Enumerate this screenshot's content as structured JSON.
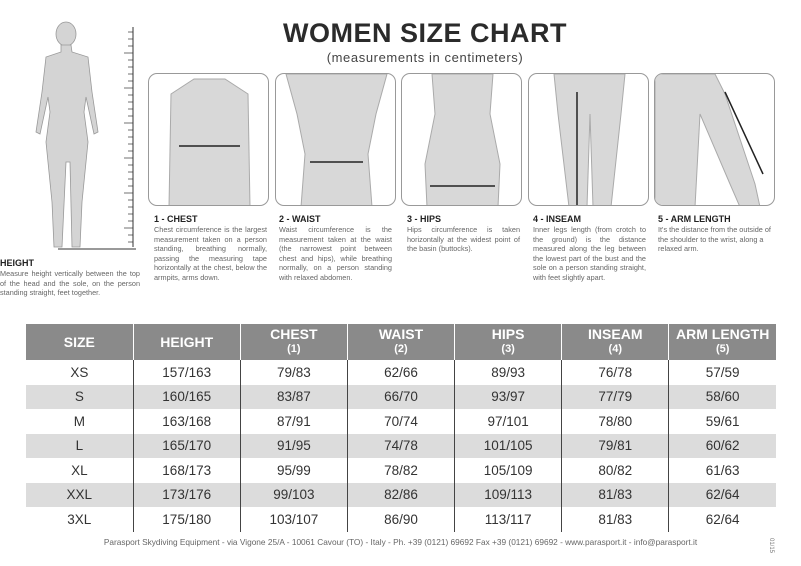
{
  "header": {
    "title": "WOMEN SIZE CHART",
    "subtitle": "(measurements in centimeters)"
  },
  "measures": [
    {
      "title": "HEIGHT",
      "text": "Measure height vertically between the top of the head and the sole, on the person standing straight, feet together."
    },
    {
      "title": "1 - CHEST",
      "text": "Chest circumference is the largest measurement taken on a person standing, breathing normally, passing the measuring tape horizontally at the chest, below the armpits, arms down."
    },
    {
      "title": "2 - WAIST",
      "text": "Waist circumference is the measurement taken at the waist (the narrowest point between chest and hips), while breathing normally, on a person standing with relaxed abdomen."
    },
    {
      "title": "3 - HIPS",
      "text": "Hips circumference is taken horizontally at the widest point of the basin (buttocks)."
    },
    {
      "title": "4 - INSEAM",
      "text": "Inner legs length (from crotch to the ground) is the distance measured along the leg between the lowest part of the bust and the sole on a person standing straight, with feet slightly apart."
    },
    {
      "title": "5 - ARM LENGTH",
      "text": "It's the distance from the outside of the shoulder to the wrist, along a relaxed arm."
    }
  ],
  "table": {
    "columns": [
      {
        "label": "SIZE",
        "note": ""
      },
      {
        "label": "HEIGHT",
        "note": ""
      },
      {
        "label": "CHEST",
        "note": "(1)"
      },
      {
        "label": "WAIST",
        "note": "(2)"
      },
      {
        "label": "HIPS",
        "note": "(3)"
      },
      {
        "label": "INSEAM",
        "note": "(4)"
      },
      {
        "label": "ARM LENGTH",
        "note": "(5)"
      }
    ],
    "rows": [
      [
        "XS",
        "157/163",
        "79/83",
        "62/66",
        "89/93",
        "76/78",
        "57/59"
      ],
      [
        "S",
        "160/165",
        "83/87",
        "66/70",
        "93/97",
        "77/79",
        "58/60"
      ],
      [
        "M",
        "163/168",
        "87/91",
        "70/74",
        "97/101",
        "78/80",
        "59/61"
      ],
      [
        "L",
        "165/170",
        "91/95",
        "74/78",
        "101/105",
        "79/81",
        "60/62"
      ],
      [
        "XL",
        "168/173",
        "95/99",
        "78/82",
        "105/109",
        "80/82",
        "61/63"
      ],
      [
        "XXL",
        "173/176",
        "99/103",
        "82/86",
        "109/113",
        "81/83",
        "62/64"
      ],
      [
        "3XL",
        "175/180",
        "103/107",
        "86/90",
        "113/117",
        "81/83",
        "62/64"
      ]
    ]
  },
  "footer": {
    "text": "Parasport Skydiving Equipment - via Vigone 25/A - 10061 Cavour (TO) - Italy - Ph. +39 (0121) 69692 Fax +39 (0121) 69692 - www.parasport.it - info@parasport.it",
    "code": "01/15"
  },
  "colors": {
    "header_bg": "#8a8a8a",
    "alt_row": "#dcdcdc",
    "figure": "#d4d4d4"
  }
}
